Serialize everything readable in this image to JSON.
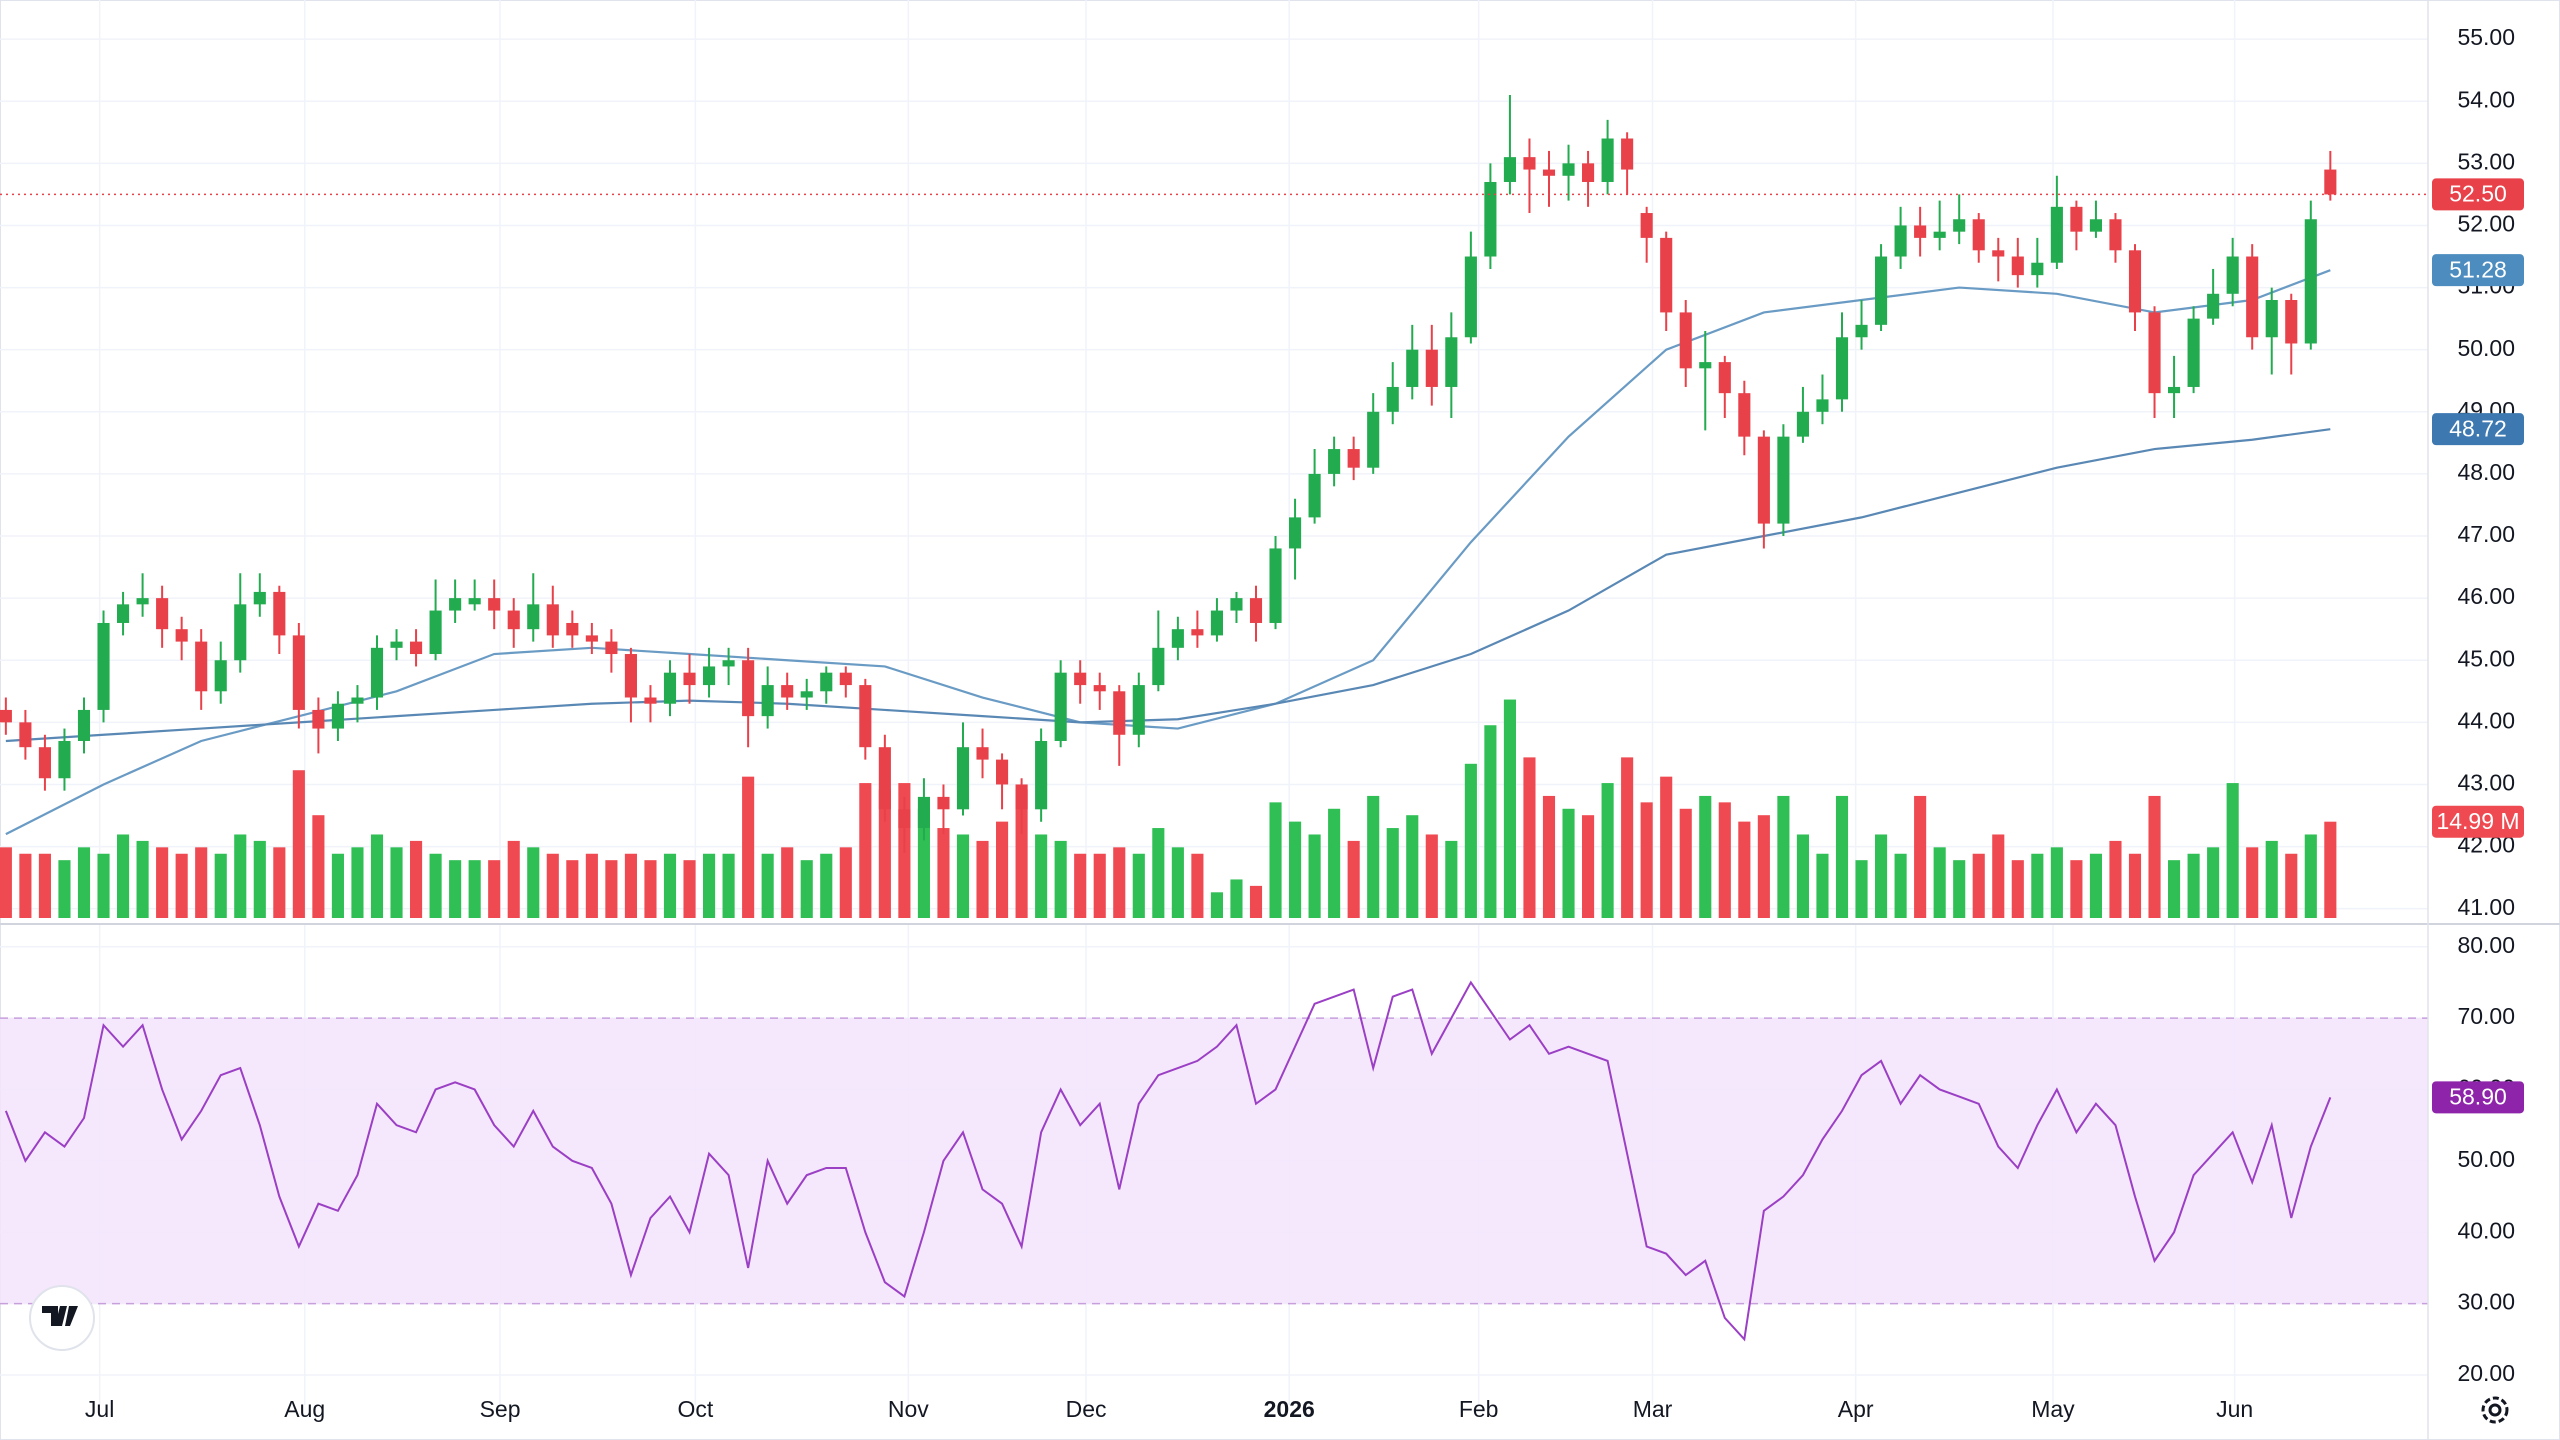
{
  "chart_data": {
    "type": "candlestick",
    "xlim": [
      -0.3,
      124
    ],
    "xticks": [
      {
        "value": 4.8,
        "label": "Jul"
      },
      {
        "value": 15.3,
        "label": "Aug"
      },
      {
        "value": 25.3,
        "label": "Sep"
      },
      {
        "value": 35.3,
        "label": "Oct"
      },
      {
        "value": 46.2,
        "label": "Nov"
      },
      {
        "value": 55.3,
        "label": "Dec"
      },
      {
        "value": 65.7,
        "label": "2026"
      },
      {
        "value": 75.4,
        "label": "Feb"
      },
      {
        "value": 84.3,
        "label": "Mar"
      },
      {
        "value": 94.7,
        "label": "Apr"
      },
      {
        "value": 104.8,
        "label": "May"
      },
      {
        "value": 114.1,
        "label": "Jun"
      }
    ],
    "ylim": [
      40.85,
      55.63
    ],
    "yticks": [
      {
        "value": 41,
        "label": "41.00"
      },
      {
        "value": 42,
        "label": "42.00"
      },
      {
        "value": 43,
        "label": "43.00"
      },
      {
        "value": 44,
        "label": "44.00"
      },
      {
        "value": 45,
        "label": "45.00"
      },
      {
        "value": 46,
        "label": "46.00"
      },
      {
        "value": 47,
        "label": "47.00"
      },
      {
        "value": 48,
        "label": "48.00"
      },
      {
        "value": 49,
        "label": "49.00"
      },
      {
        "value": 50,
        "label": "50.00"
      },
      {
        "value": 51,
        "label": "51.00"
      },
      {
        "value": 52,
        "label": "52.00"
      },
      {
        "value": 53,
        "label": "53.00"
      },
      {
        "value": 54,
        "label": "54.00"
      },
      {
        "value": 55,
        "label": "55.00"
      }
    ],
    "grid": true,
    "up_color": "#22ab4f",
    "down_color": "#e8414a",
    "open": [
      44.2,
      44.0,
      43.6,
      43.1,
      43.7,
      44.2,
      45.6,
      45.9,
      46.0,
      45.5,
      45.3,
      44.5,
      45.0,
      45.9,
      46.1,
      45.4,
      44.2,
      43.9,
      44.3,
      44.4,
      45.2,
      45.3,
      45.1,
      45.8,
      45.9,
      46.0,
      45.8,
      45.5,
      45.9,
      45.6,
      45.4,
      45.3,
      45.1,
      44.4,
      44.3,
      44.8,
      44.6,
      44.9,
      45.0,
      44.1,
      44.6,
      44.4,
      44.5,
      44.8,
      44.6,
      43.6,
      42.6,
      42.3,
      42.8,
      42.6,
      43.6,
      43.4,
      43.0,
      42.6,
      43.7,
      44.8,
      44.6,
      44.5,
      43.8,
      44.6,
      45.2,
      45.5,
      45.4,
      45.8,
      46.0,
      45.6,
      46.8,
      47.3,
      48.0,
      48.4,
      48.1,
      49.0,
      49.4,
      50.0,
      49.4,
      50.2,
      51.5,
      52.7,
      53.1,
      52.9,
      52.8,
      53.0,
      52.7,
      53.4,
      52.2,
      51.8,
      50.6,
      49.7,
      49.8,
      49.3,
      48.6,
      47.2,
      48.6,
      49.0,
      49.2,
      50.2,
      50.4,
      51.5,
      52.0,
      51.8,
      51.9,
      52.1,
      51.6,
      51.5,
      51.2,
      51.4,
      52.3,
      51.9,
      52.1,
      51.6,
      50.6,
      49.3,
      49.4,
      50.5,
      50.9,
      51.5,
      50.2,
      50.8,
      50.1,
      52.9
    ],
    "high": [
      44.4,
      44.2,
      43.8,
      43.9,
      44.4,
      45.8,
      46.1,
      46.4,
      46.2,
      45.7,
      45.5,
      45.3,
      46.4,
      46.4,
      46.2,
      45.6,
      44.4,
      44.5,
      44.6,
      45.4,
      45.5,
      45.5,
      46.3,
      46.3,
      46.3,
      46.3,
      46.0,
      46.4,
      46.2,
      45.8,
      45.6,
      45.5,
      45.2,
      44.6,
      45.0,
      45.1,
      45.2,
      45.2,
      45.2,
      44.9,
      44.8,
      44.7,
      44.9,
      44.9,
      44.7,
      43.8,
      42.8,
      43.1,
      43.0,
      44.0,
      43.9,
      43.5,
      43.1,
      43.9,
      45.0,
      45.0,
      44.8,
      44.6,
      44.8,
      45.8,
      45.7,
      45.8,
      46.0,
      46.1,
      46.2,
      47.0,
      47.6,
      48.4,
      48.6,
      48.6,
      49.3,
      49.8,
      50.4,
      50.4,
      50.6,
      51.9,
      53.0,
      54.1,
      53.4,
      53.2,
      53.3,
      53.2,
      53.7,
      53.5,
      52.3,
      51.9,
      50.8,
      50.3,
      49.9,
      49.5,
      48.7,
      48.8,
      49.4,
      49.6,
      50.6,
      50.8,
      51.7,
      52.3,
      52.3,
      52.4,
      52.5,
      52.2,
      51.8,
      51.8,
      51.8,
      52.8,
      52.4,
      52.4,
      52.2,
      51.7,
      50.7,
      49.9,
      50.7,
      51.3,
      51.8,
      51.7,
      51.0,
      50.9,
      52.4,
      53.2
    ],
    "low": [
      43.8,
      43.4,
      42.9,
      42.9,
      43.5,
      44.0,
      45.4,
      45.7,
      45.2,
      45.0,
      44.2,
      44.3,
      44.8,
      45.7,
      45.1,
      43.9,
      43.5,
      43.7,
      44.0,
      44.2,
      45.0,
      44.9,
      45.0,
      45.6,
      45.8,
      45.5,
      45.2,
      45.3,
      45.2,
      45.2,
      45.1,
      44.8,
      44.0,
      44.0,
      44.1,
      44.3,
      44.4,
      44.6,
      43.6,
      43.9,
      44.2,
      44.2,
      44.3,
      44.4,
      43.4,
      42.4,
      41.9,
      42.1,
      42.2,
      42.5,
      43.1,
      42.6,
      42.2,
      42.4,
      43.6,
      44.3,
      44.2,
      43.3,
      43.6,
      44.5,
      45.0,
      45.2,
      45.3,
      45.6,
      45.3,
      45.5,
      46.3,
      47.2,
      47.8,
      47.9,
      48.0,
      48.8,
      49.2,
      49.1,
      48.9,
      50.1,
      51.3,
      52.5,
      52.2,
      52.3,
      52.4,
      52.3,
      52.5,
      52.5,
      51.4,
      50.3,
      49.4,
      48.7,
      48.9,
      48.3,
      46.8,
      47.0,
      48.5,
      48.8,
      49.0,
      50.0,
      50.3,
      51.3,
      51.5,
      51.6,
      51.7,
      51.4,
      51.1,
      51.0,
      51.0,
      51.3,
      51.6,
      51.8,
      51.4,
      50.3,
      48.9,
      48.9,
      49.3,
      50.4,
      50.7,
      50.0,
      49.6,
      49.6,
      50.0,
      52.4
    ],
    "close": [
      44.0,
      43.6,
      43.1,
      43.7,
      44.2,
      45.6,
      45.9,
      46.0,
      45.5,
      45.3,
      44.5,
      45.0,
      45.9,
      46.1,
      45.4,
      44.2,
      43.9,
      44.3,
      44.4,
      45.2,
      45.3,
      45.1,
      45.8,
      46.0,
      46.0,
      45.8,
      45.5,
      45.9,
      45.4,
      45.4,
      45.3,
      45.1,
      44.4,
      44.3,
      44.8,
      44.6,
      44.9,
      45.0,
      44.1,
      44.6,
      44.4,
      44.5,
      44.8,
      44.6,
      43.6,
      42.6,
      42.3,
      42.8,
      42.6,
      43.6,
      43.4,
      43.0,
      42.6,
      43.7,
      44.8,
      44.6,
      44.5,
      43.8,
      44.6,
      45.2,
      45.5,
      45.4,
      45.8,
      46.0,
      45.6,
      46.8,
      47.3,
      48.0,
      48.4,
      48.1,
      49.0,
      49.4,
      50.0,
      49.4,
      50.2,
      51.5,
      52.7,
      53.1,
      52.9,
      52.8,
      53.0,
      52.7,
      53.4,
      52.9,
      51.8,
      50.6,
      49.7,
      49.8,
      49.3,
      48.6,
      47.2,
      48.6,
      49.0,
      49.2,
      50.2,
      50.4,
      51.5,
      52.0,
      51.8,
      51.9,
      52.1,
      51.6,
      51.5,
      51.2,
      51.4,
      52.3,
      51.9,
      52.1,
      51.6,
      50.6,
      49.3,
      49.4,
      50.5,
      50.9,
      51.5,
      50.2,
      50.8,
      50.1,
      52.1,
      52.5
    ],
    "close_label": "52.50",
    "moving_averages": [
      {
        "color": "#6a9bc4",
        "label_color": "#4c8cbf",
        "x": [
          0,
          5,
          10,
          15,
          20,
          25,
          30,
          35,
          40,
          45,
          50,
          55,
          60,
          65,
          70,
          75,
          80,
          85,
          90,
          95,
          100,
          105,
          110,
          115,
          119
        ],
        "values": [
          42.2,
          43.0,
          43.7,
          44.1,
          44.5,
          45.1,
          45.2,
          45.1,
          45.0,
          44.9,
          44.4,
          44.0,
          43.9,
          44.3,
          45.0,
          46.9,
          48.6,
          50.0,
          50.6,
          50.8,
          51.0,
          50.9,
          50.6,
          50.8,
          51.28
        ]
      },
      {
        "color": "#5a88b5",
        "label_color": "#3d78b0",
        "x": [
          0,
          5,
          10,
          15,
          20,
          25,
          30,
          35,
          40,
          45,
          50,
          55,
          60,
          65,
          70,
          75,
          80,
          85,
          90,
          95,
          100,
          105,
          110,
          115,
          119
        ],
        "values": [
          43.7,
          43.8,
          43.9,
          44.0,
          44.1,
          44.2,
          44.3,
          44.35,
          44.3,
          44.2,
          44.1,
          44.0,
          44.05,
          44.3,
          44.6,
          45.1,
          45.8,
          46.7,
          47.0,
          47.3,
          47.7,
          48.1,
          48.4,
          48.55,
          48.72
        ]
      }
    ],
    "volume": {
      "ylim": [
        0,
        40
      ],
      "up_color": "#2fbf55",
      "down_color": "#ef4a52",
      "last_label": "14.99 M",
      "values": [
        11,
        10,
        10,
        9,
        11,
        10,
        13,
        12,
        11,
        10,
        11,
        10,
        13,
        12,
        11,
        23,
        16,
        10,
        11,
        13,
        11,
        12,
        10,
        9,
        9,
        9,
        12,
        11,
        10,
        9,
        10,
        9,
        10,
        9,
        10,
        9,
        10,
        10,
        22,
        10,
        11,
        9,
        10,
        11,
        21,
        20,
        21,
        17,
        14,
        13,
        12,
        15,
        20,
        13,
        12,
        10,
        10,
        11,
        10,
        14,
        11,
        10,
        4,
        6,
        5,
        18,
        15,
        13,
        17,
        12,
        19,
        14,
        16,
        13,
        12,
        24,
        30,
        34,
        25,
        19,
        17,
        16,
        21,
        25,
        18,
        22,
        17,
        19,
        18,
        15,
        16,
        19,
        13,
        10,
        19,
        9,
        13,
        10,
        19,
        11,
        9,
        10,
        13,
        9,
        10,
        11,
        9,
        10,
        12,
        10,
        19,
        9,
        10,
        11,
        21,
        11,
        12,
        10,
        13,
        14.99
      ]
    },
    "rsi": {
      "color": "#9b3fc4",
      "band_color": "#f3e4fd",
      "label_color": "#8e24aa",
      "ylim": [
        18.6,
        82.2
      ],
      "band": [
        30,
        70
      ],
      "last_label": "58.90",
      "yticks": [
        {
          "value": 20,
          "label": "20.00"
        },
        {
          "value": 30,
          "label": "30.00"
        },
        {
          "value": 40,
          "label": "40.00"
        },
        {
          "value": 50,
          "label": "50.00"
        },
        {
          "value": 60,
          "label": "60.00"
        },
        {
          "value": 70,
          "label": "70.00"
        },
        {
          "value": 80,
          "label": "80.00"
        }
      ],
      "values": [
        57,
        50,
        54,
        52,
        56,
        69,
        66,
        69,
        60,
        53,
        57,
        62,
        63,
        55,
        45,
        38,
        44,
        43,
        48,
        58,
        55,
        54,
        60,
        61,
        60,
        55,
        52,
        57,
        52,
        50,
        49,
        44,
        34,
        42,
        45,
        40,
        51,
        48,
        35,
        50,
        44,
        48,
        49,
        49,
        40,
        33,
        31,
        40,
        50,
        54,
        46,
        44,
        38,
        54,
        60,
        55,
        58,
        46,
        58,
        62,
        63,
        64,
        66,
        69,
        58,
        60,
        66,
        72,
        73,
        74,
        63,
        73,
        74,
        65,
        70,
        75,
        71,
        67,
        69,
        65,
        66,
        65,
        64,
        51,
        38,
        37,
        34,
        36,
        28,
        25,
        43,
        45,
        48,
        53,
        57,
        62,
        64,
        58,
        62,
        60,
        59,
        58,
        52,
        49,
        55,
        60,
        54,
        58,
        55,
        45,
        36,
        40,
        48,
        51,
        54,
        47,
        55,
        42,
        52,
        58.9
      ]
    }
  }
}
